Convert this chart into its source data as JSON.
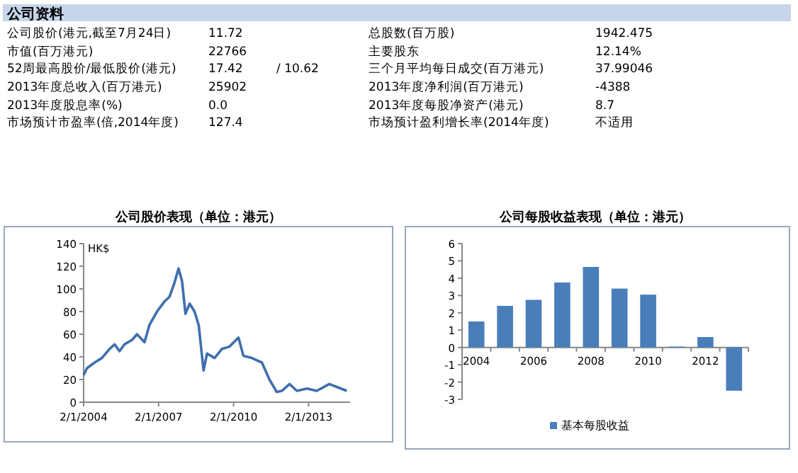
{
  "chart_data": [
    {
      "type": "other",
      "title": "公司资料",
      "annotations": [
        "公司股价(港元,截至7月24日)",
        "11.72",
        "总股数(百万股)",
        "1942.475",
        "市值(百万港元)",
        "22766",
        "主要股东",
        "12.14%",
        "52周最高股价/最低股价(港元)",
        "17.42",
        "/ 10.62",
        "三个月平均每日成交(百万港元)",
        "37.99046",
        "2013年度总收入(百万港元)",
        "25902",
        "2013年度净利润(百万港元)",
        "-4388",
        "2013年度股息率(%)",
        "0.0",
        "2013年度每股净资产(港元)",
        "8.7",
        "市场预计市盈率(倍,2014年度)",
        "127.4",
        "市场预计盈利增长率(2014年度)",
        "不适用"
      ]
    },
    {
      "type": "line",
      "title": "公司股价表现（单位：港元）",
      "ylabel": "HK$",
      "xlim": [
        "2004-01-02",
        "2014-09-01"
      ],
      "xticks": [
        {
          "value": "2004-01-02",
          "label": "2/1/2004"
        },
        {
          "value": "2007-01-02",
          "label": "2/1/2007"
        },
        {
          "value": "2010-01-02",
          "label": "2/1/2010"
        },
        {
          "value": "2013-01-02",
          "label": "2/1/2013"
        }
      ],
      "ylim": [
        0,
        140
      ],
      "yticks": [
        0,
        20,
        40,
        60,
        80,
        100,
        120,
        140
      ],
      "grid": false,
      "legend": false,
      "x": [
        "2004-01-02",
        "2004-02-20",
        "2004-06-10",
        "2004-09-25",
        "2005-01-15",
        "2005-03-30",
        "2005-06-10",
        "2005-08-20",
        "2005-12-10",
        "2006-02-20",
        "2006-06-10",
        "2006-08-20",
        "2006-12-10",
        "2007-03-30",
        "2007-06-10",
        "2007-08-20",
        "2007-10-20",
        "2007-12-10",
        "2008-01-30",
        "2008-03-30",
        "2008-06-10",
        "2008-08-10",
        "2008-10-20",
        "2008-12-10",
        "2009-03-30",
        "2009-07-15",
        "2009-11-01",
        "2010-03-15",
        "2010-05-25",
        "2010-09-25",
        "2011-02-20",
        "2011-06-10",
        "2011-09-25",
        "2011-12-10",
        "2012-03-30",
        "2012-07-15",
        "2012-12-10",
        "2013-05-01",
        "2013-11-01",
        "2014-03-30",
        "2014-07-15"
      ],
      "series": [
        {
          "color": "#3f6fad",
          "values": [
            24,
            30,
            35,
            39,
            47,
            51,
            45,
            51,
            55,
            60,
            53,
            68,
            80,
            89,
            93,
            105,
            118,
            107,
            78,
            87,
            80,
            68,
            28,
            43,
            39,
            47,
            49,
            57,
            41,
            39,
            35,
            20,
            9,
            10,
            16,
            10,
            12,
            10,
            16,
            12.5,
            10
          ]
        }
      ]
    },
    {
      "type": "bar",
      "title": "公司每股收益表现（单位：港元）",
      "categories": [
        "2004",
        null,
        "2006",
        null,
        "2008",
        null,
        "2010",
        null,
        "2012",
        null
      ],
      "ylim": [
        -3,
        6
      ],
      "yticks": [
        -3,
        -2,
        -1,
        0,
        1,
        2,
        3,
        4,
        5,
        6
      ],
      "grid": false,
      "legend": "bottom",
      "series": [
        {
          "name": "基本每股收益",
          "color": "#4a7ebb",
          "values": [
            1.5,
            2.4,
            2.75,
            3.75,
            4.65,
            3.4,
            3.05,
            0.05,
            0.6,
            -2.5
          ]
        }
      ]
    }
  ]
}
